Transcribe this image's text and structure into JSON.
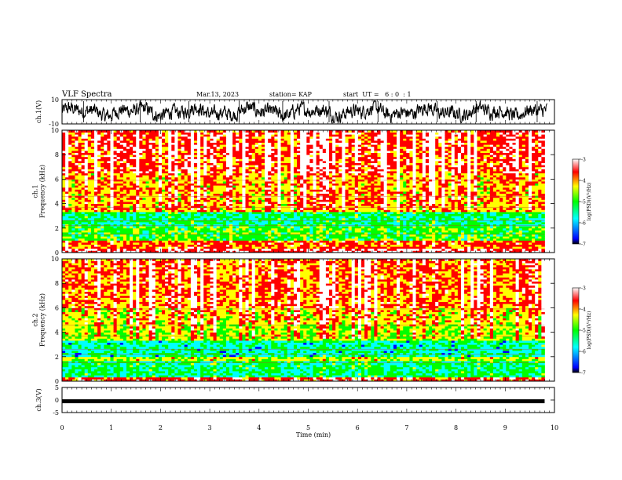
{
  "header": {
    "title": "VLF Spectra",
    "date": "Mar.13, 2023",
    "station": "station= KAP",
    "start": "start  UT =   6 : 0  : 1"
  },
  "chart_data": [
    {
      "type": "line",
      "name": "ch.1 waveform",
      "ylabel": "ch.1(V)",
      "ylim": [
        -10,
        10
      ],
      "yticks": [
        "10",
        "-10"
      ],
      "xlim": [
        0,
        10
      ],
      "line_color": "#000000"
    },
    {
      "type": "heatmap",
      "name": "ch.1 spectrogram",
      "ylabel": "ch.1\nFrequency (kHz)",
      "ylim": [
        0,
        10
      ],
      "yticks": [
        "0",
        "2",
        "4",
        "6",
        "8",
        "10"
      ],
      "xlim": [
        0,
        10
      ],
      "data_xmax": 9.8,
      "colorbar": {
        "label": "log(PSD)(V²/Hz)",
        "range": [
          -7,
          -3
        ],
        "ticks": [
          "-3",
          "-4",
          "-5",
          "-6",
          "-7"
        ],
        "colors": [
          "#000000",
          "#0000ff",
          "#00ffff",
          "#00ff00",
          "#ffff00",
          "#ff0000",
          "#ffffff"
        ]
      },
      "bands": [
        {
          "from": 0.0,
          "to": 0.3,
          "level": -3.4
        },
        {
          "from": 0.3,
          "to": 1.0,
          "level": -3.9
        },
        {
          "from": 1.0,
          "to": 2.1,
          "level": -5.0
        },
        {
          "from": 2.1,
          "to": 3.3,
          "level": -5.3
        },
        {
          "from": 3.3,
          "to": 3.9,
          "level": -4.2
        },
        {
          "from": 3.9,
          "to": 6.5,
          "level": -4.1
        },
        {
          "from": 6.5,
          "to": 10.0,
          "level": -3.7
        }
      ]
    },
    {
      "type": "heatmap",
      "name": "ch.2 spectrogram",
      "ylabel": "ch.2\nFrequency (kHz)",
      "ylim": [
        0,
        10
      ],
      "yticks": [
        "0",
        "2",
        "4",
        "6",
        "8",
        "10"
      ],
      "xlim": [
        0,
        10
      ],
      "data_xmax": 9.8,
      "colorbar": {
        "label": "log(PSD)(V²/Hz)",
        "range": [
          -7,
          -3
        ],
        "ticks": [
          "-3",
          "-4",
          "-5",
          "-6",
          "-7"
        ],
        "colors": [
          "#000000",
          "#0000ff",
          "#00ffff",
          "#00ff00",
          "#ffff00",
          "#ff0000",
          "#ffffff"
        ]
      },
      "bands": [
        {
          "from": 0.0,
          "to": 0.3,
          "level": -3.7
        },
        {
          "from": 0.3,
          "to": 1.6,
          "level": -5.3
        },
        {
          "from": 1.6,
          "to": 2.0,
          "level": -4.6
        },
        {
          "from": 2.0,
          "to": 3.3,
          "level": -5.5
        },
        {
          "from": 3.3,
          "to": 4.6,
          "level": -4.6
        },
        {
          "from": 4.6,
          "to": 6.0,
          "level": -4.3
        },
        {
          "from": 6.0,
          "to": 10.0,
          "level": -3.9
        }
      ]
    },
    {
      "type": "line",
      "name": "ch.3 signal",
      "ylabel": "ch.3(V)",
      "ylim": [
        -5,
        5
      ],
      "yticks": [
        "5",
        "0",
        "-5"
      ],
      "xlim": [
        0,
        10
      ],
      "constant_value": -0.5,
      "line_color": "#000000"
    }
  ],
  "xaxis": {
    "label": "Time (min)",
    "ticks": [
      "0",
      "1",
      "2",
      "3",
      "4",
      "5",
      "6",
      "7",
      "8",
      "9",
      "10"
    ]
  }
}
